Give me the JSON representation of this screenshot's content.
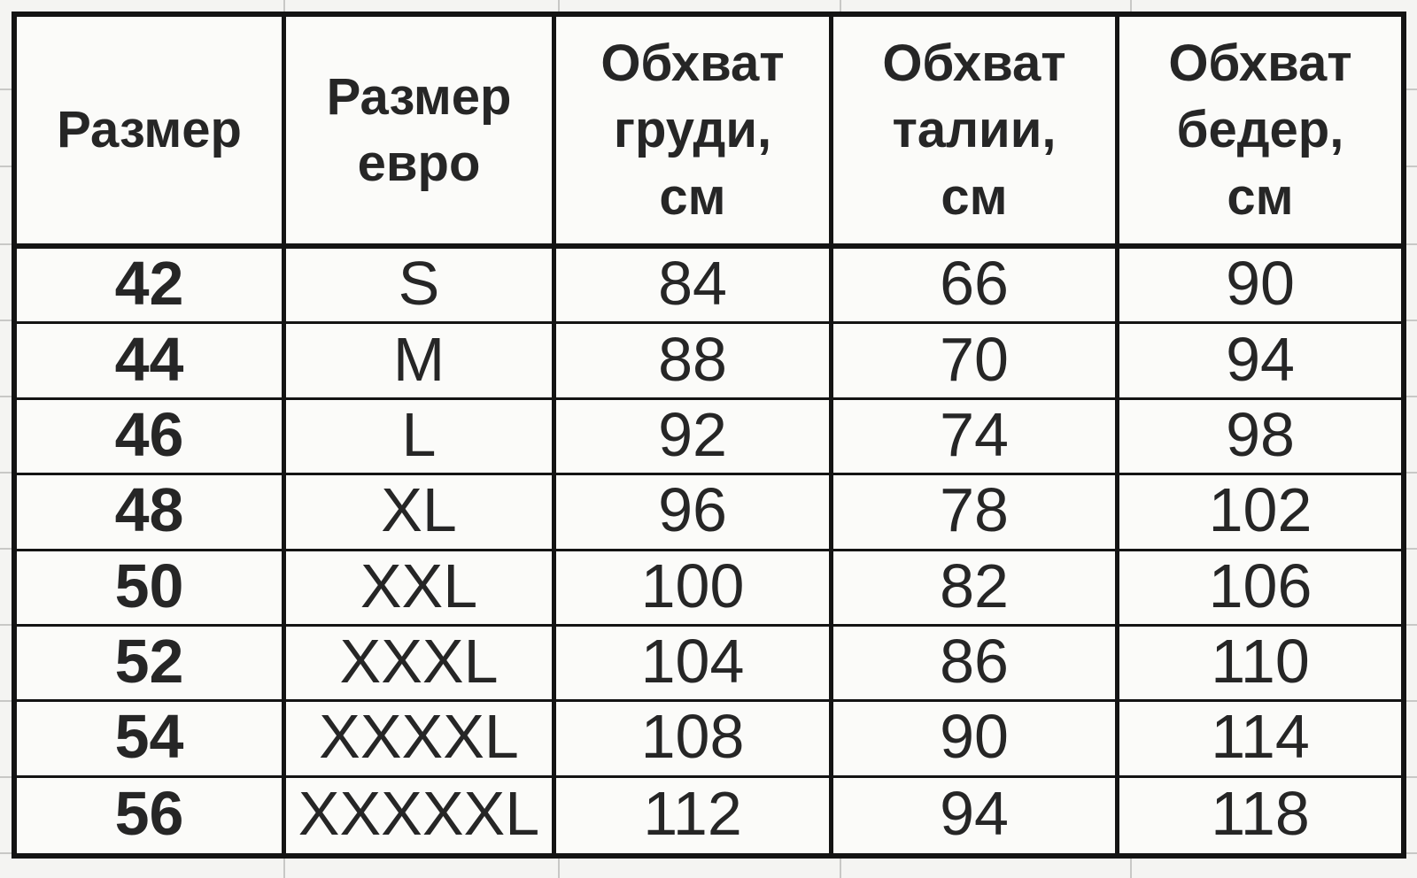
{
  "table": {
    "columns": [
      {
        "key": "size",
        "header": "Размер"
      },
      {
        "key": "euro",
        "header": "Размер\nевро"
      },
      {
        "key": "chest",
        "header": "Обхват\nгруди,\nсм"
      },
      {
        "key": "waist",
        "header": "Обхват\nталии,\nсм"
      },
      {
        "key": "hips",
        "header": "Обхват\nбедер,\nсм"
      }
    ],
    "rows": [
      [
        "42",
        "S",
        "84",
        "66",
        "90"
      ],
      [
        "44",
        "M",
        "88",
        "70",
        "94"
      ],
      [
        "46",
        "L",
        "92",
        "74",
        "98"
      ],
      [
        "48",
        "XL",
        "96",
        "78",
        "102"
      ],
      [
        "50",
        "XXL",
        "100",
        "82",
        "106"
      ],
      [
        "52",
        "XXXL",
        "104",
        "86",
        "110"
      ],
      [
        "54",
        "XXXXL",
        "108",
        "90",
        "114"
      ],
      [
        "56",
        "XXXXXL",
        "112",
        "94",
        "118"
      ]
    ]
  },
  "colors": {
    "border": "#141414",
    "text": "#262626",
    "cell_bg": "#fbfbf9",
    "page_bg": "#f4f4f2",
    "gridline": "#c8c8c6"
  }
}
